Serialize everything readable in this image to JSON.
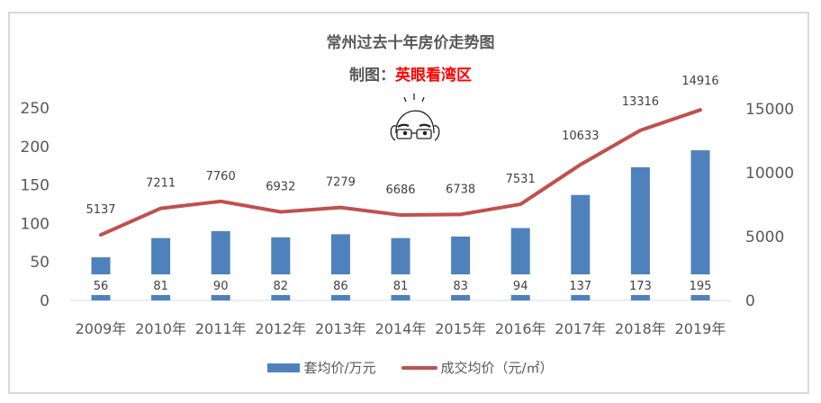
{
  "title": "常州过去十年房价走势图",
  "subtitle": {
    "prefix": "制图：",
    "author": "英眼看湾区"
  },
  "mascot": "bald-man-with-glasses-cartoon",
  "colors": {
    "bar": "#4f81bd",
    "line": "#c0504d",
    "author": "#ff0000",
    "text": "#595959",
    "frame": "#d9d9d9"
  },
  "legend": {
    "bar_label": "套均价/万元",
    "line_label": "成交均价（元/㎡）"
  },
  "chart_data": {
    "type": "bar+line",
    "title": "常州过去十年房价走势图",
    "subtitle": "制图：英眼看湾区",
    "categories": [
      "2009年",
      "2010年",
      "2011年",
      "2012年",
      "2013年",
      "2014年",
      "2015年",
      "2016年",
      "2017年",
      "2018年",
      "2019年"
    ],
    "series": [
      {
        "name": "套均价/万元",
        "type": "bar",
        "axis": "left",
        "values": [
          56,
          81,
          90,
          82,
          86,
          81,
          83,
          94,
          137,
          173,
          195
        ]
      },
      {
        "name": "成交均价（元/㎡）",
        "type": "line",
        "axis": "right",
        "values": [
          5137,
          7211,
          7760,
          6932,
          7279,
          6686,
          6738,
          7531,
          10633,
          13316,
          14916
        ]
      }
    ],
    "left_axis": {
      "ticks": [
        "0",
        "50",
        "100",
        "150",
        "200",
        "250"
      ],
      "ylim": [
        0,
        250
      ]
    },
    "right_axis": {
      "ticks": [
        "0",
        "5000",
        "10000",
        "15000"
      ],
      "ylim": [
        0,
        15000
      ]
    },
    "grid": false,
    "legend_position": "bottom"
  }
}
